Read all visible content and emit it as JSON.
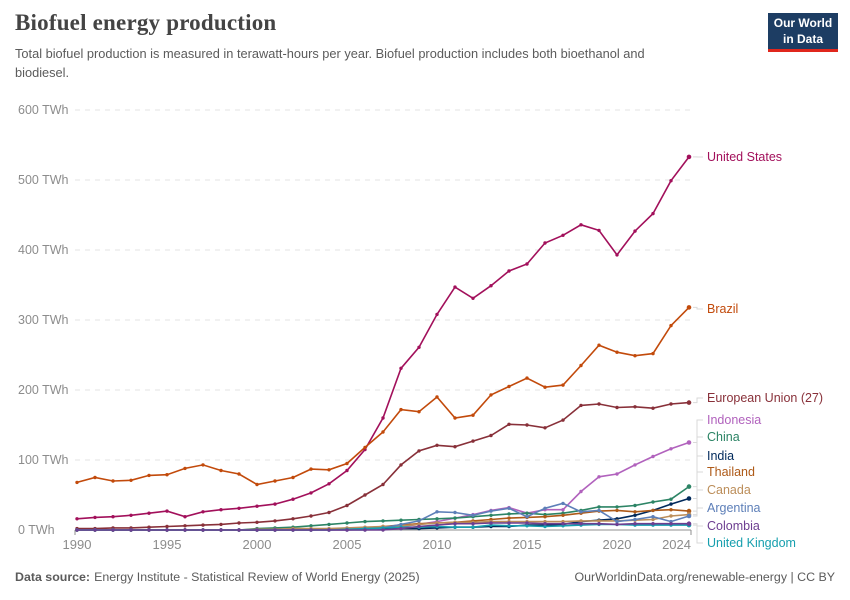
{
  "header": {
    "title": "Biofuel energy production",
    "subtitle": "Total biofuel production is measured in terawatt-hours per year. Biofuel production includes both bioethanol and biodiesel.",
    "logo": {
      "line1": "Our World",
      "line2": "in Data"
    }
  },
  "chart_data": {
    "type": "line",
    "title": "Biofuel energy production",
    "unit": "TWh",
    "ylim": [
      0,
      600
    ],
    "yticks": [
      0,
      100,
      200,
      300,
      400,
      500,
      600
    ],
    "ytick_suffix": " TWh",
    "x_range": [
      1990,
      2024
    ],
    "xticks": [
      1990,
      1995,
      2000,
      2005,
      2010,
      2015,
      2020,
      2024
    ],
    "grid": "horizontal-dashed",
    "legend_position": "right-end-labels",
    "colors": {
      "grid": "#e3e3e3",
      "axis": "#8f8f8f",
      "tick_text": "#8c8c8c",
      "connector": "#d9d9d9"
    },
    "series": [
      {
        "name": "United States",
        "color": "#a2105b",
        "values": [
          16,
          18,
          19,
          21,
          24,
          27,
          19,
          26,
          29,
          31,
          34,
          37,
          44,
          53,
          66,
          85,
          115,
          160,
          231,
          261,
          308,
          347,
          331,
          349,
          370,
          380,
          410,
          421,
          436,
          428,
          393,
          427,
          452,
          499,
          533
        ]
      },
      {
        "name": "Brazil",
        "color": "#c24a0b",
        "values": [
          68,
          75,
          70,
          71,
          78,
          79,
          88,
          93,
          85,
          80,
          65,
          70,
          75,
          87,
          86,
          95,
          118,
          140,
          172,
          169,
          190,
          160,
          164,
          193,
          205,
          217,
          204,
          207,
          235,
          264,
          254,
          249,
          252,
          292,
          318
        ]
      },
      {
        "name": "European Union (27)",
        "color": "#883039",
        "values": [
          2,
          2,
          3,
          3,
          4,
          5,
          6,
          7,
          8,
          10,
          11,
          13,
          16,
          20,
          25,
          35,
          50,
          65,
          93,
          113,
          121,
          119,
          127,
          135,
          151,
          150,
          146,
          157,
          178,
          180,
          175,
          176,
          174,
          180,
          182
        ]
      },
      {
        "name": "Indonesia",
        "color": "#b162bd",
        "values": [
          0,
          0,
          0,
          0,
          0,
          0,
          0,
          0,
          0,
          0,
          0,
          0,
          0,
          0,
          0,
          0,
          1,
          3,
          5,
          8,
          12,
          17,
          22,
          28,
          32,
          24,
          29,
          29,
          55,
          76,
          80,
          93,
          105,
          116,
          125
        ]
      },
      {
        "name": "China",
        "color": "#2c8465",
        "values": [
          0,
          0,
          0,
          0,
          0,
          0,
          0,
          0,
          0,
          0,
          2,
          3,
          4,
          6,
          8,
          10,
          12,
          13,
          14,
          15,
          16,
          17,
          19,
          21,
          23,
          24,
          22,
          24,
          28,
          33,
          33,
          35,
          40,
          44,
          62
        ]
      },
      {
        "name": "India",
        "color": "#00295b",
        "values": [
          0,
          0,
          0,
          0,
          0,
          0,
          0,
          0,
          0,
          0,
          0,
          0,
          1,
          1,
          1,
          2,
          2,
          2,
          2,
          2,
          3,
          4,
          4,
          5,
          5,
          7,
          7,
          8,
          12,
          14,
          16,
          21,
          28,
          37,
          45
        ]
      },
      {
        "name": "Thailand",
        "color": "#ae5a18",
        "values": [
          0,
          0,
          0,
          0,
          0,
          0,
          0,
          0,
          0,
          0,
          0,
          0,
          0,
          0,
          1,
          2,
          3,
          5,
          7,
          9,
          10,
          11,
          13,
          15,
          17,
          18,
          19,
          21,
          24,
          27,
          28,
          26,
          28,
          29,
          27
        ]
      },
      {
        "name": "Canada",
        "color": "#bc8e5a",
        "values": [
          0,
          0,
          0,
          0,
          0,
          0,
          0,
          0,
          0,
          0,
          1,
          1,
          2,
          2,
          2,
          3,
          4,
          5,
          6,
          8,
          10,
          11,
          11,
          12,
          12,
          12,
          12,
          12,
          13,
          13,
          13,
          14,
          15,
          20,
          22
        ]
      },
      {
        "name": "Argentina",
        "color": "#5d7fb8",
        "values": [
          0,
          0,
          0,
          0,
          0,
          0,
          0,
          0,
          0,
          0,
          0,
          0,
          0,
          0,
          0,
          0,
          0,
          3,
          8,
          13,
          26,
          25,
          21,
          27,
          31,
          19,
          31,
          38,
          26,
          28,
          12,
          15,
          19,
          12,
          20
        ]
      },
      {
        "name": "Colombia",
        "color": "#6d3e91",
        "values": [
          0,
          0,
          0,
          0,
          0,
          0,
          0,
          0,
          0,
          0,
          0,
          0,
          0,
          0,
          0,
          0,
          0,
          0,
          2,
          5,
          7,
          9,
          9,
          10,
          10,
          10,
          9,
          9,
          9,
          9,
          8,
          9,
          9,
          9,
          9
        ]
      },
      {
        "name": "United Kingdom",
        "color": "#169fae",
        "values": [
          0,
          0,
          0,
          0,
          0,
          0,
          0,
          0,
          0,
          0,
          0,
          0,
          0,
          0,
          0,
          1,
          2,
          3,
          4,
          4,
          5,
          4,
          4,
          7,
          6,
          6,
          5,
          6,
          7,
          8,
          8,
          7,
          7,
          7,
          7
        ]
      }
    ]
  },
  "footer": {
    "source_label": "Data source:",
    "source_text": "Energy Institute - Statistical Review of World Energy (2025)",
    "credit": "OurWorldinData.org/renewable-energy | CC BY"
  }
}
